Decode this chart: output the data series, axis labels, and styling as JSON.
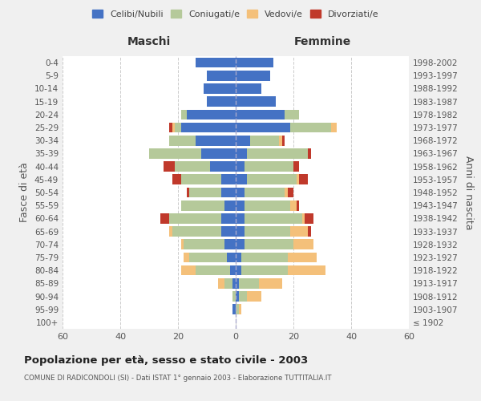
{
  "age_groups": [
    "100+",
    "95-99",
    "90-94",
    "85-89",
    "80-84",
    "75-79",
    "70-74",
    "65-69",
    "60-64",
    "55-59",
    "50-54",
    "45-49",
    "40-44",
    "35-39",
    "30-34",
    "25-29",
    "20-24",
    "15-19",
    "10-14",
    "5-9",
    "0-4"
  ],
  "birth_years": [
    "≤ 1902",
    "1903-1907",
    "1908-1912",
    "1913-1917",
    "1918-1922",
    "1923-1927",
    "1928-1932",
    "1933-1937",
    "1938-1942",
    "1943-1947",
    "1948-1952",
    "1953-1957",
    "1958-1962",
    "1963-1967",
    "1968-1972",
    "1973-1977",
    "1978-1982",
    "1983-1987",
    "1988-1992",
    "1993-1997",
    "1998-2002"
  ],
  "maschi": {
    "celibi": [
      0,
      1,
      0,
      1,
      2,
      3,
      4,
      5,
      5,
      4,
      5,
      5,
      9,
      12,
      14,
      19,
      17,
      10,
      11,
      10,
      14
    ],
    "coniugati": [
      0,
      0,
      1,
      3,
      12,
      13,
      14,
      17,
      18,
      15,
      11,
      14,
      12,
      18,
      9,
      2,
      2,
      0,
      0,
      0,
      0
    ],
    "vedovi": [
      0,
      0,
      0,
      2,
      5,
      2,
      1,
      1,
      0,
      0,
      0,
      0,
      0,
      0,
      0,
      1,
      0,
      0,
      0,
      0,
      0
    ],
    "divorziati": [
      0,
      0,
      0,
      0,
      0,
      0,
      0,
      0,
      3,
      0,
      1,
      3,
      4,
      0,
      0,
      1,
      0,
      0,
      0,
      0,
      0
    ]
  },
  "femmine": {
    "nubili": [
      0,
      0,
      1,
      1,
      2,
      2,
      3,
      3,
      3,
      3,
      3,
      4,
      3,
      4,
      5,
      19,
      17,
      14,
      9,
      12,
      13
    ],
    "coniugate": [
      0,
      1,
      3,
      7,
      16,
      16,
      17,
      16,
      20,
      16,
      14,
      17,
      17,
      21,
      10,
      14,
      5,
      0,
      0,
      0,
      0
    ],
    "vedove": [
      0,
      1,
      5,
      8,
      13,
      10,
      7,
      6,
      1,
      2,
      1,
      1,
      0,
      0,
      1,
      2,
      0,
      0,
      0,
      0,
      0
    ],
    "divorziate": [
      0,
      0,
      0,
      0,
      0,
      0,
      0,
      1,
      3,
      1,
      2,
      3,
      2,
      1,
      1,
      0,
      0,
      0,
      0,
      0,
      0
    ]
  },
  "colors": {
    "celibi": "#4472c4",
    "coniugati": "#b5c99a",
    "vedovi": "#f4c07a",
    "divorziati": "#c0392b"
  },
  "xlim": 60,
  "title": "Popolazione per età, sesso e stato civile - 2003",
  "subtitle": "COMUNE DI RADICONDOLI (SI) - Dati ISTAT 1° gennaio 2003 - Elaborazione TUTTITALIA.IT",
  "ylabel_left": "Fasce di età",
  "ylabel_right": "Anni di nascita",
  "xlabel_left": "Maschi",
  "xlabel_right": "Femmine",
  "legend_labels": [
    "Celibi/Nubili",
    "Coniugati/e",
    "Vedovi/e",
    "Divorziati/e"
  ],
  "bg_color": "#f0f0f0",
  "plot_bg_color": "#ffffff"
}
